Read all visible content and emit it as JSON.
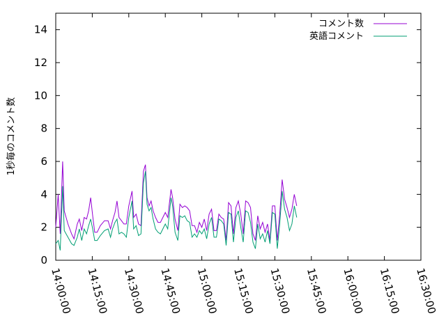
{
  "chart_data": {
    "type": "line",
    "title": "",
    "xlabel": "",
    "ylabel": "1秒毎のコメント数",
    "xlim": [
      "14:00:00",
      "16:30:00"
    ],
    "ylim": [
      0,
      15
    ],
    "x_ticks": [
      "14:00:00",
      "14:15:00",
      "14:30:00",
      "14:45:00",
      "15:00:00",
      "15:15:00",
      "15:30:00",
      "15:45:00",
      "16:00:00",
      "16:15:00",
      "16:30:00"
    ],
    "y_ticks": [
      "0",
      "2",
      "4",
      "6",
      "8",
      "10",
      "12",
      "14"
    ],
    "legend_position": "top-right",
    "grid": false,
    "series": [
      {
        "name": "コメント数",
        "color": "#9400d3",
        "points": [
          [
            "14:00:00",
            2.0
          ],
          [
            "14:01:00",
            4.0
          ],
          [
            "14:01:50",
            1.6
          ],
          [
            "14:02:50",
            6.0
          ],
          [
            "14:03:30",
            3.0
          ],
          [
            "14:05:00",
            2.2
          ],
          [
            "14:06:30",
            1.6
          ],
          [
            "14:07:30",
            1.3
          ],
          [
            "14:08:50",
            2.2
          ],
          [
            "14:09:40",
            2.5
          ],
          [
            "14:10:40",
            1.8
          ],
          [
            "14:11:40",
            2.6
          ],
          [
            "14:12:40",
            2.5
          ],
          [
            "14:13:30",
            3.0
          ],
          [
            "14:14:20",
            3.8
          ],
          [
            "14:15:10",
            2.7
          ],
          [
            "14:16:00",
            1.7
          ],
          [
            "14:17:00",
            1.7
          ],
          [
            "14:18:20",
            2.1
          ],
          [
            "14:20:00",
            2.4
          ],
          [
            "14:21:30",
            2.4
          ],
          [
            "14:22:30",
            1.9
          ],
          [
            "14:23:20",
            2.4
          ],
          [
            "14:24:20",
            2.9
          ],
          [
            "14:25:10",
            3.6
          ],
          [
            "14:26:00",
            2.6
          ],
          [
            "14:27:00",
            2.4
          ],
          [
            "14:28:00",
            2.2
          ],
          [
            "14:29:00",
            2.2
          ],
          [
            "14:30:00",
            3.3
          ],
          [
            "14:31:20",
            4.2
          ],
          [
            "14:32:00",
            2.6
          ],
          [
            "14:33:00",
            2.8
          ],
          [
            "14:34:00",
            2.2
          ],
          [
            "14:35:00",
            2.1
          ],
          [
            "14:36:00",
            5.4
          ],
          [
            "14:36:50",
            5.8
          ],
          [
            "14:37:30",
            3.8
          ],
          [
            "14:38:20",
            3.3
          ],
          [
            "14:39:10",
            3.6
          ],
          [
            "14:40:00",
            3.0
          ],
          [
            "14:41:00",
            2.6
          ],
          [
            "14:42:00",
            2.3
          ],
          [
            "14:43:00",
            2.3
          ],
          [
            "14:44:00",
            2.6
          ],
          [
            "14:45:00",
            2.9
          ],
          [
            "14:46:00",
            2.6
          ],
          [
            "14:47:20",
            4.3
          ],
          [
            "14:48:00",
            3.8
          ],
          [
            "14:49:00",
            2.5
          ],
          [
            "14:50:10",
            1.8
          ],
          [
            "14:51:00",
            3.4
          ],
          [
            "14:52:00",
            3.2
          ],
          [
            "14:53:00",
            3.3
          ],
          [
            "14:54:00",
            3.2
          ],
          [
            "14:55:00",
            3.0
          ],
          [
            "14:56:00",
            2.1
          ],
          [
            "14:57:00",
            2.1
          ],
          [
            "14:58:00",
            1.7
          ],
          [
            "14:59:00",
            2.3
          ],
          [
            "15:00:00",
            2.0
          ],
          [
            "15:01:00",
            2.5
          ],
          [
            "15:02:00",
            1.8
          ],
          [
            "15:03:00",
            2.8
          ],
          [
            "15:04:00",
            3.1
          ],
          [
            "15:05:00",
            1.8
          ],
          [
            "15:06:00",
            1.8
          ],
          [
            "15:07:00",
            2.8
          ],
          [
            "15:08:00",
            2.6
          ],
          [
            "15:09:00",
            2.5
          ],
          [
            "15:10:00",
            1.2
          ],
          [
            "15:11:00",
            3.5
          ],
          [
            "15:12:00",
            3.3
          ],
          [
            "15:13:00",
            1.6
          ],
          [
            "15:14:00",
            3.2
          ],
          [
            "15:15:00",
            3.6
          ],
          [
            "15:16:00",
            2.8
          ],
          [
            "15:17:00",
            1.6
          ],
          [
            "15:18:00",
            3.6
          ],
          [
            "15:19:00",
            3.5
          ],
          [
            "15:20:00",
            3.2
          ],
          [
            "15:21:00",
            1.6
          ],
          [
            "15:22:00",
            1.2
          ],
          [
            "15:23:00",
            2.7
          ],
          [
            "15:24:00",
            1.9
          ],
          [
            "15:25:00",
            2.3
          ],
          [
            "15:26:00",
            1.7
          ],
          [
            "15:27:00",
            2.2
          ],
          [
            "15:28:00",
            1.2
          ],
          [
            "15:29:00",
            3.3
          ],
          [
            "15:30:00",
            3.3
          ],
          [
            "15:31:00",
            1.2
          ],
          [
            "15:32:00",
            2.8
          ],
          [
            "15:33:00",
            4.9
          ],
          [
            "15:34:00",
            3.7
          ],
          [
            "15:35:00",
            3.2
          ],
          [
            "15:36:00",
            2.6
          ],
          [
            "15:37:00",
            3.1
          ],
          [
            "15:38:00",
            4.0
          ],
          [
            "15:39:00",
            3.3
          ]
        ]
      },
      {
        "name": "英語コメント",
        "color": "#009e73",
        "points": [
          [
            "14:00:00",
            1.0
          ],
          [
            "14:01:00",
            1.2
          ],
          [
            "14:01:50",
            0.6
          ],
          [
            "14:02:50",
            4.5
          ],
          [
            "14:03:30",
            1.8
          ],
          [
            "14:05:00",
            1.4
          ],
          [
            "14:06:30",
            1.0
          ],
          [
            "14:07:30",
            0.9
          ],
          [
            "14:08:50",
            1.4
          ],
          [
            "14:09:40",
            1.9
          ],
          [
            "14:10:40",
            1.2
          ],
          [
            "14:11:40",
            1.9
          ],
          [
            "14:12:40",
            1.6
          ],
          [
            "14:13:30",
            2.1
          ],
          [
            "14:14:20",
            2.5
          ],
          [
            "14:15:10",
            1.9
          ],
          [
            "14:16:00",
            1.2
          ],
          [
            "14:17:00",
            1.2
          ],
          [
            "14:18:20",
            1.5
          ],
          [
            "14:20:00",
            1.8
          ],
          [
            "14:21:30",
            1.9
          ],
          [
            "14:22:30",
            1.4
          ],
          [
            "14:23:20",
            1.9
          ],
          [
            "14:24:20",
            2.3
          ],
          [
            "14:25:10",
            2.5
          ],
          [
            "14:26:00",
            1.6
          ],
          [
            "14:27:00",
            1.7
          ],
          [
            "14:28:00",
            1.6
          ],
          [
            "14:29:00",
            1.4
          ],
          [
            "14:30:00",
            2.6
          ],
          [
            "14:31:20",
            3.6
          ],
          [
            "14:32:00",
            1.9
          ],
          [
            "14:33:00",
            2.1
          ],
          [
            "14:34:00",
            1.5
          ],
          [
            "14:35:00",
            1.6
          ],
          [
            "14:36:00",
            4.7
          ],
          [
            "14:36:50",
            5.4
          ],
          [
            "14:37:30",
            3.4
          ],
          [
            "14:38:20",
            3.0
          ],
          [
            "14:39:10",
            3.2
          ],
          [
            "14:40:00",
            2.5
          ],
          [
            "14:41:00",
            1.9
          ],
          [
            "14:42:00",
            1.7
          ],
          [
            "14:43:00",
            1.6
          ],
          [
            "14:44:00",
            1.9
          ],
          [
            "14:45:00",
            2.2
          ],
          [
            "14:46:00",
            1.9
          ],
          [
            "14:47:20",
            3.8
          ],
          [
            "14:48:00",
            3.3
          ],
          [
            "14:49:00",
            1.7
          ],
          [
            "14:50:10",
            1.2
          ],
          [
            "14:51:00",
            2.7
          ],
          [
            "14:52:00",
            2.6
          ],
          [
            "14:53:00",
            2.7
          ],
          [
            "14:54:00",
            2.4
          ],
          [
            "14:55:00",
            2.3
          ],
          [
            "14:56:00",
            1.4
          ],
          [
            "14:57:00",
            1.6
          ],
          [
            "14:58:00",
            1.4
          ],
          [
            "14:59:00",
            1.8
          ],
          [
            "15:00:00",
            1.6
          ],
          [
            "15:01:00",
            1.9
          ],
          [
            "15:02:00",
            1.3
          ],
          [
            "15:03:00",
            2.2
          ],
          [
            "15:04:00",
            2.6
          ],
          [
            "15:05:00",
            1.4
          ],
          [
            "15:06:00",
            1.4
          ],
          [
            "15:07:00",
            2.5
          ],
          [
            "15:08:00",
            2.4
          ],
          [
            "15:09:00",
            2.2
          ],
          [
            "15:10:00",
            0.9
          ],
          [
            "15:11:00",
            2.9
          ],
          [
            "15:12:00",
            2.8
          ],
          [
            "15:13:00",
            1.1
          ],
          [
            "15:14:00",
            2.6
          ],
          [
            "15:15:00",
            3.0
          ],
          [
            "15:16:00",
            2.0
          ],
          [
            "15:17:00",
            1.1
          ],
          [
            "15:18:00",
            3.0
          ],
          [
            "15:19:00",
            2.9
          ],
          [
            "15:20:00",
            2.3
          ],
          [
            "15:21:00",
            1.1
          ],
          [
            "15:22:00",
            0.7
          ],
          [
            "15:23:00",
            2.2
          ],
          [
            "15:24:00",
            1.3
          ],
          [
            "15:25:00",
            1.6
          ],
          [
            "15:26:00",
            1.1
          ],
          [
            "15:27:00",
            1.8
          ],
          [
            "15:28:00",
            1.0
          ],
          [
            "15:29:00",
            2.9
          ],
          [
            "15:30:00",
            2.8
          ],
          [
            "15:31:00",
            0.7
          ],
          [
            "15:32:00",
            2.2
          ],
          [
            "15:33:00",
            4.2
          ],
          [
            "15:34:00",
            3.1
          ],
          [
            "15:35:00",
            2.6
          ],
          [
            "15:36:00",
            1.8
          ],
          [
            "15:37:00",
            2.2
          ],
          [
            "15:38:00",
            3.3
          ],
          [
            "15:39:00",
            2.6
          ]
        ]
      }
    ]
  }
}
